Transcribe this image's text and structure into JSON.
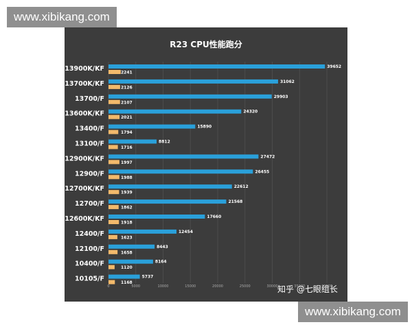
{
  "watermark_top": "www.xibikang.com",
  "watermark_bottom": "www.xibikang.com",
  "brand": "知乎 @七眼组长",
  "colors": {
    "bar_primary": "#2aa0da",
    "bar_secondary": "#f2b96b",
    "panel": "#3c3c3c"
  },
  "chart_data": {
    "type": "bar",
    "orientation": "horizontal",
    "title": "R23 CPU性能跑分",
    "categories": [
      "13900K/KF",
      "13700K/KF",
      "13700/F",
      "13600K/KF",
      "13400/F",
      "13100/F",
      "12900K/KF",
      "12900/F",
      "12700K/KF",
      "12700/F",
      "12600K/KF",
      "12400/F",
      "12100/F",
      "10400/F",
      "10105/F"
    ],
    "series": [
      {
        "values": [
          39652,
          31062,
          29903,
          24320,
          15890,
          8812,
          27472,
          26455,
          22612,
          21568,
          17660,
          12454,
          8443,
          8164,
          5737
        ]
      },
      {
        "values": [
          2241,
          2126,
          2107,
          2021,
          1794,
          1716,
          1997,
          1988,
          1939,
          1862,
          1918,
          1623,
          1658,
          1120,
          1168
        ]
      }
    ],
    "xticks": [
      0,
      5000,
      10000,
      15000,
      20000,
      25000,
      30000,
      35000,
      40000
    ],
    "xlim": [
      0,
      40000
    ],
    "grid": true,
    "legend": false
  }
}
